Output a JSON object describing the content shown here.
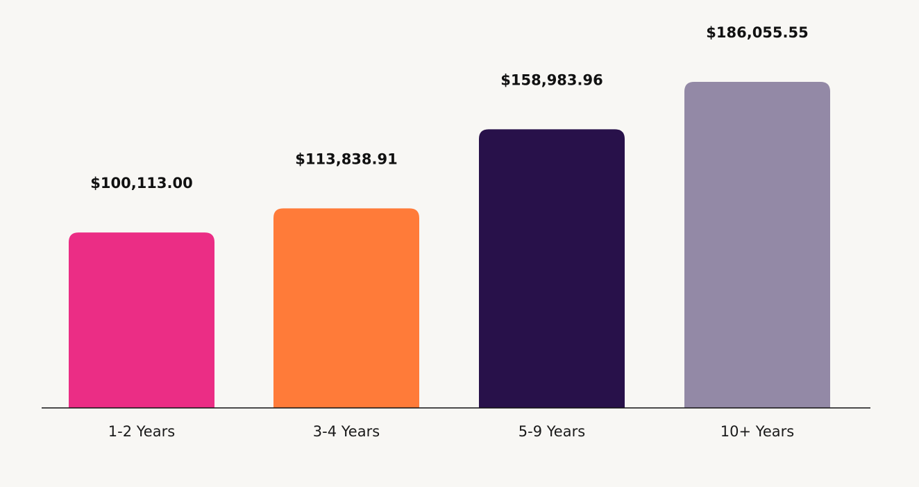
{
  "chart_data": {
    "type": "bar",
    "categories": [
      "1-2 Years",
      "3-4 Years",
      "5-9 Years",
      "10+ Years"
    ],
    "values": [
      100113.0,
      113838.91,
      158983.96,
      186055.55
    ],
    "value_labels": [
      "$100,113.00",
      "$113,838.91",
      "$158,983.96",
      "$186,055.55"
    ],
    "colors": [
      "#eb2d85",
      "#ff7b39",
      "#28114a",
      "#9389a6"
    ]
  }
}
